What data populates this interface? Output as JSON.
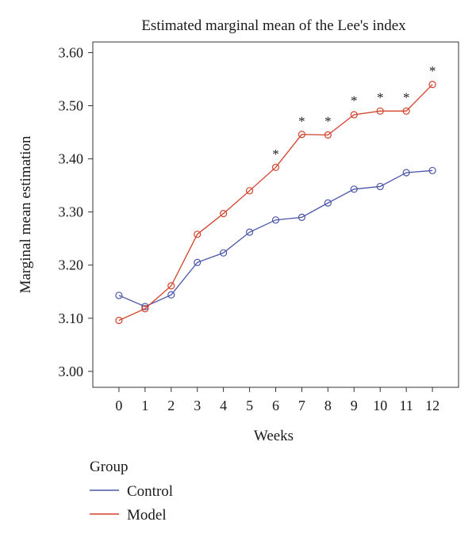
{
  "chart_data": {
    "type": "line",
    "title": "Estimated marginal mean of the Lee's index",
    "xlabel": "Weeks",
    "ylabel": "Marginal mean estimation",
    "x": [
      0,
      1,
      2,
      3,
      4,
      5,
      6,
      7,
      8,
      9,
      10,
      11,
      12
    ],
    "xlim": [
      -1,
      13
    ],
    "ylim": [
      2.97,
      3.62
    ],
    "yticks": [
      "3.00",
      "3.10",
      "3.20",
      "3.30",
      "3.40",
      "3.50",
      "3.60"
    ],
    "grid": false,
    "legend": {
      "title": "Group",
      "placement": "bottom-left",
      "entries": [
        "Control",
        "Model"
      ]
    },
    "series": [
      {
        "name": "Control",
        "color": "#4a56a8",
        "values": [
          3.143,
          3.122,
          3.144,
          3.205,
          3.223,
          3.262,
          3.285,
          3.29,
          3.317,
          3.343,
          3.348,
          3.374,
          3.378
        ]
      },
      {
        "name": "Model",
        "color": "#d2412a",
        "values": [
          3.096,
          3.118,
          3.161,
          3.258,
          3.297,
          3.34,
          3.384,
          3.446,
          3.445,
          3.483,
          3.49,
          3.49,
          3.54
        ]
      }
    ],
    "annotations": [
      {
        "x": 6,
        "y": 3.414,
        "text": "*"
      },
      {
        "x": 7,
        "y": 3.476,
        "text": "*"
      },
      {
        "x": 8,
        "y": 3.476,
        "text": "*"
      },
      {
        "x": 9,
        "y": 3.515,
        "text": "*"
      },
      {
        "x": 10,
        "y": 3.521,
        "text": "*"
      },
      {
        "x": 11,
        "y": 3.521,
        "text": "*"
      },
      {
        "x": 12,
        "y": 3.571,
        "text": "*"
      }
    ]
  }
}
